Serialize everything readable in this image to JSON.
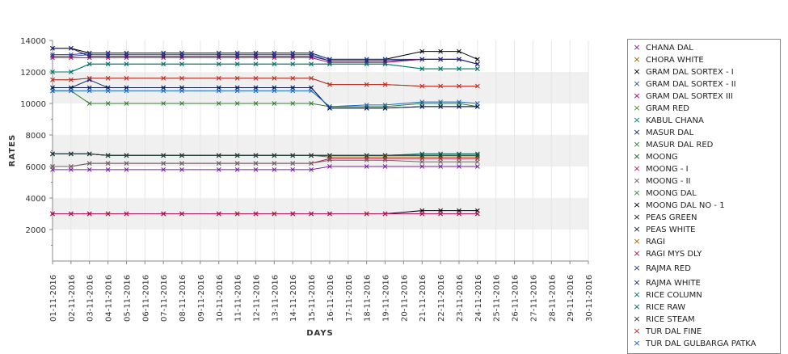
{
  "chart_data": {
    "type": "line",
    "xlabel": "DAYS",
    "ylabel": "RATES",
    "ylim": [
      0,
      14000
    ],
    "yticks": [
      2000,
      4000,
      6000,
      8000,
      10000,
      12000,
      14000
    ],
    "grid": "horizontal bands",
    "legend_position": "right",
    "x": [
      "01-11-2016",
      "02-11-2016",
      "03-11-2016",
      "04-11-2016",
      "05-11-2016",
      "06-11-2016",
      "07-11-2016",
      "08-11-2016",
      "09-11-2016",
      "10-11-2016",
      "11-11-2016",
      "12-11-2016",
      "13-11-2016",
      "14-11-2016",
      "15-11-2016",
      "16-11-2016",
      "17-11-2016",
      "18-11-2016",
      "19-11-2016",
      "20-11-2016",
      "21-11-2016",
      "22-11-2016",
      "23-11-2016",
      "24-11-2016",
      "25-11-2016",
      "26-11-2016",
      "27-11-2016",
      "28-11-2016",
      "29-11-2016",
      "30-11-2016"
    ],
    "series": [
      {
        "name": "CHANA DAL",
        "color": "#7b1fa2",
        "values": [
          5800,
          5800,
          5800,
          5800,
          5800,
          null,
          5800,
          5800,
          null,
          5800,
          5800,
          5800,
          5800,
          5800,
          5800,
          6000,
          null,
          6000,
          6000,
          null,
          6000,
          6000,
          6000,
          6000,
          null,
          null,
          null,
          null,
          null,
          null
        ]
      },
      {
        "name": "CHORA WHITE",
        "color": "#996600",
        "values": [
          6800,
          6800,
          6800,
          6700,
          6700,
          null,
          6700,
          6700,
          null,
          6700,
          6700,
          6700,
          6700,
          6700,
          6700,
          6600,
          null,
          6600,
          6600,
          null,
          6600,
          6600,
          6600,
          6600,
          null,
          null,
          null,
          null,
          null,
          null
        ]
      },
      {
        "name": "GRAM DAL SORTEX  - I",
        "color": "#000000",
        "values": [
          13500,
          13500,
          13200,
          13200,
          13200,
          null,
          13200,
          13200,
          null,
          13200,
          13200,
          13200,
          13200,
          13200,
          13200,
          12800,
          null,
          12800,
          12800,
          null,
          13300,
          13300,
          13300,
          12800,
          null,
          null,
          null,
          null,
          null,
          null
        ]
      },
      {
        "name": "GRAM DAL SORTEX - II",
        "color": "#3949ab",
        "values": [
          13000,
          13000,
          13100,
          13100,
          13100,
          null,
          13100,
          13100,
          null,
          13100,
          13100,
          13100,
          13100,
          13100,
          13100,
          12700,
          null,
          12700,
          12700,
          null,
          12800,
          12800,
          12800,
          12500,
          null,
          null,
          null,
          null,
          null,
          null
        ]
      },
      {
        "name": "GRAM DAL SORTEX III",
        "color": "#b0006e",
        "values": [
          12900,
          12900,
          12900,
          12900,
          12900,
          null,
          12900,
          12900,
          null,
          12900,
          12900,
          12900,
          12900,
          12900,
          12900,
          12600,
          null,
          12600,
          12600,
          null,
          12800,
          12800,
          12800,
          12500,
          null,
          null,
          null,
          null,
          null,
          null
        ]
      },
      {
        "name": "GRAM RED",
        "color": "#558b2f",
        "values": [
          6800,
          6800,
          6800,
          6700,
          6700,
          null,
          6700,
          6700,
          null,
          6700,
          6700,
          6700,
          6700,
          6700,
          6700,
          6700,
          null,
          6700,
          6700,
          null,
          6800,
          6800,
          6800,
          6800,
          null,
          null,
          null,
          null,
          null,
          null
        ]
      },
      {
        "name": "KABUL CHANA",
        "color": "#00897b",
        "values": [
          12000,
          12000,
          12500,
          12500,
          12500,
          null,
          12500,
          12500,
          null,
          12500,
          12500,
          12500,
          12500,
          12500,
          12500,
          12500,
          null,
          12500,
          12500,
          null,
          12200,
          12200,
          12200,
          12200,
          null,
          null,
          null,
          null,
          null,
          null
        ]
      },
      {
        "name": "MASUR DAL",
        "color": "#0d2a6b",
        "values": [
          11000,
          11000,
          11500,
          11000,
          11000,
          null,
          11000,
          11000,
          null,
          11000,
          11000,
          11000,
          11000,
          11000,
          11000,
          9700,
          null,
          9700,
          9700,
          null,
          9800,
          9800,
          9800,
          9800,
          null,
          null,
          null,
          null,
          null,
          null
        ]
      },
      {
        "name": "MASUR DAL RED",
        "color": "#2e7d32",
        "values": [
          10800,
          10800,
          10000,
          10000,
          10000,
          null,
          10000,
          10000,
          null,
          10000,
          10000,
          10000,
          10000,
          10000,
          10000,
          9800,
          null,
          9800,
          9800,
          null,
          10000,
          10000,
          10000,
          9800,
          null,
          null,
          null,
          null,
          null,
          null
        ]
      },
      {
        "name": "MOONG",
        "color": "#1b5e20",
        "values": [
          6800,
          6800,
          6800,
          6700,
          6700,
          null,
          6700,
          6700,
          null,
          6700,
          6700,
          6700,
          6700,
          6700,
          6700,
          6700,
          null,
          6700,
          6700,
          null,
          6700,
          6700,
          6700,
          6700,
          null,
          null,
          null,
          null,
          null,
          null
        ]
      },
      {
        "name": "MOONG - I",
        "color": "#c2185b",
        "values": [
          6000,
          6000,
          6200,
          6200,
          6200,
          null,
          6200,
          6200,
          null,
          6200,
          6200,
          6200,
          6200,
          6200,
          6200,
          6500,
          null,
          6500,
          6500,
          null,
          6500,
          6500,
          6500,
          6500,
          null,
          null,
          null,
          null,
          null,
          null
        ]
      },
      {
        "name": "MOONG - II",
        "color": "#666666",
        "values": [
          6000,
          6000,
          6200,
          6200,
          6200,
          null,
          6200,
          6200,
          null,
          6200,
          6200,
          6200,
          6200,
          6200,
          6200,
          6400,
          null,
          6400,
          6400,
          null,
          6300,
          6300,
          6300,
          6300,
          null,
          null,
          null,
          null,
          null,
          null
        ]
      },
      {
        "name": "MOONG DAL",
        "color": "#388e3c",
        "values": [
          11500,
          11500,
          11600,
          11600,
          11600,
          null,
          11600,
          11600,
          null,
          11600,
          11600,
          11600,
          11600,
          11600,
          11600,
          11200,
          null,
          11200,
          11200,
          null,
          11100,
          11100,
          11100,
          11100,
          null,
          null,
          null,
          null,
          null,
          null
        ]
      },
      {
        "name": "MOONG DAL NO - 1",
        "color": "#000000",
        "values": [
          3000,
          3000,
          3000,
          3000,
          3000,
          null,
          3000,
          3000,
          null,
          3000,
          3000,
          3000,
          3000,
          3000,
          3000,
          3000,
          null,
          3000,
          3000,
          null,
          3200,
          3200,
          3200,
          3200,
          null,
          null,
          null,
          null,
          null,
          null
        ]
      },
      {
        "name": "PEAS GREEN",
        "color": "#222222",
        "values": [
          3000,
          3000,
          3000,
          3000,
          3000,
          null,
          3000,
          3000,
          null,
          3000,
          3000,
          3000,
          3000,
          3000,
          3000,
          3000,
          null,
          3000,
          3000,
          null,
          3000,
          3000,
          3000,
          3000,
          null,
          null,
          null,
          null,
          null,
          null
        ]
      },
      {
        "name": "PEAS WHITE",
        "color": "#0a1a4a",
        "values": [
          11000,
          11000,
          11000,
          11000,
          11000,
          null,
          11000,
          11000,
          null,
          11000,
          11000,
          11000,
          11000,
          11000,
          11000,
          9700,
          null,
          9700,
          9700,
          null,
          9800,
          9800,
          9800,
          9800,
          null,
          null,
          null,
          null,
          null,
          null
        ]
      },
      {
        "name": "RAGI",
        "color": "#b26a00",
        "values": [
          3000,
          3000,
          3000,
          3000,
          3000,
          null,
          3000,
          3000,
          null,
          3000,
          3000,
          3000,
          3000,
          3000,
          3000,
          3000,
          null,
          3000,
          3000,
          null,
          3000,
          3000,
          3000,
          3000,
          null,
          null,
          null,
          null,
          null,
          null
        ]
      },
      {
        "name": "RAGI MYS DLY",
        "color": "#ad1457",
        "values": [
          3000,
          3000,
          3000,
          3000,
          3000,
          null,
          3000,
          3000,
          null,
          3000,
          3000,
          3000,
          3000,
          3000,
          3000,
          3000,
          null,
          3000,
          3000,
          null,
          3000,
          3000,
          3000,
          3000,
          null,
          null,
          null,
          null,
          null,
          null
        ]
      },
      {
        "name": "RAJMA RED",
        "color": "#283593",
        "values": [
          13100,
          13100,
          13200,
          13200,
          13200,
          null,
          13200,
          13200,
          null,
          13200,
          13200,
          13200,
          13200,
          13200,
          13200,
          12800,
          null,
          12800,
          12800,
          null,
          12800,
          12800,
          12800,
          12500,
          null,
          null,
          null,
          null,
          null,
          null
        ]
      },
      {
        "name": "RAJMA WHITE",
        "color": "#1a237e",
        "values": [
          13500,
          13500,
          13000,
          13000,
          13000,
          null,
          13000,
          13000,
          null,
          13000,
          13000,
          13000,
          13000,
          13000,
          13000,
          12700,
          null,
          12700,
          12700,
          null,
          12800,
          12800,
          12800,
          12500,
          null,
          null,
          null,
          null,
          null,
          null
        ]
      },
      {
        "name": "RICE COLUMN",
        "color": "#00796b",
        "values": [
          12000,
          12000,
          12500,
          12500,
          12500,
          null,
          12500,
          12500,
          null,
          12500,
          12500,
          12500,
          12500,
          12500,
          12500,
          12500,
          null,
          12500,
          12500,
          null,
          12200,
          12200,
          12200,
          12200,
          null,
          null,
          null,
          null,
          null,
          null
        ]
      },
      {
        "name": "RICE RAW",
        "color": "#00695c",
        "values": [
          6800,
          6800,
          6800,
          6700,
          6700,
          null,
          6700,
          6700,
          null,
          6700,
          6700,
          6700,
          6700,
          6700,
          6700,
          6700,
          null,
          6700,
          6700,
          null,
          6800,
          6800,
          6800,
          6800,
          null,
          null,
          null,
          null,
          null,
          null
        ]
      },
      {
        "name": "RICE STEAM",
        "color": "#263238",
        "values": [
          6800,
          6800,
          6800,
          6700,
          6700,
          null,
          6700,
          6700,
          null,
          6700,
          6700,
          6700,
          6700,
          6700,
          6700,
          6700,
          null,
          6700,
          6700,
          null,
          6700,
          6700,
          6700,
          6700,
          null,
          null,
          null,
          null,
          null,
          null
        ]
      },
      {
        "name": "TUR DAL FINE",
        "color": "#c62828",
        "values": [
          11500,
          11500,
          11600,
          11600,
          11600,
          null,
          11600,
          11600,
          null,
          11600,
          11600,
          11600,
          11600,
          11600,
          11600,
          11200,
          null,
          11200,
          11200,
          null,
          11100,
          11100,
          11100,
          11100,
          null,
          null,
          null,
          null,
          null,
          null
        ]
      },
      {
        "name": "TUR DAL GULBARGA PATKA",
        "color": "#1565c0",
        "values": [
          10800,
          10800,
          10800,
          10800,
          10800,
          null,
          10800,
          10800,
          null,
          10800,
          10800,
          10800,
          10800,
          10800,
          10800,
          9800,
          null,
          9900,
          9900,
          null,
          10100,
          10100,
          10100,
          10000,
          null,
          null,
          null,
          null,
          null,
          null
        ]
      }
    ]
  }
}
